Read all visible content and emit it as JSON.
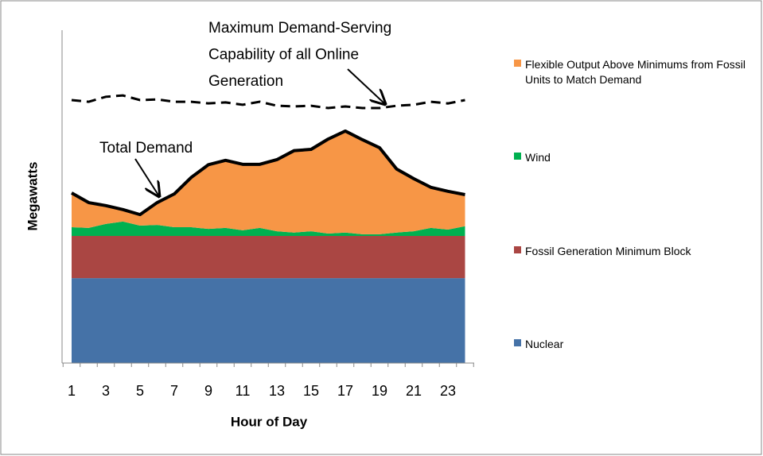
{
  "chart_data": {
    "type": "stacked_area",
    "x_label": "Hour of Day",
    "y_label": "Megawatts",
    "categories": [
      "1",
      null,
      "3",
      null,
      "5",
      null,
      "7",
      null,
      "9",
      null,
      "11",
      null,
      "13",
      null,
      "15",
      null,
      "17",
      null,
      "19",
      null,
      "21",
      null,
      "23",
      null
    ],
    "ylim": [
      0,
      100
    ],
    "series": [
      {
        "name": "Nuclear",
        "color": "#4572a7",
        "values": [
          25.5,
          25.5,
          25.5,
          25.5,
          25.5,
          25.5,
          25.5,
          25.5,
          25.5,
          25.5,
          25.5,
          25.5,
          25.5,
          25.5,
          25.5,
          25.5,
          25.5,
          25.5,
          25.5,
          25.5,
          25.5,
          25.5,
          25.5,
          25.5
        ]
      },
      {
        "name": "Fossil Generation Minimum Block",
        "color": "#aa4643",
        "values": [
          12.7,
          12.7,
          12.7,
          12.7,
          12.7,
          12.7,
          12.7,
          12.7,
          12.7,
          12.7,
          12.7,
          12.7,
          12.7,
          12.7,
          12.7,
          12.7,
          12.7,
          12.7,
          12.7,
          12.7,
          12.7,
          12.7,
          12.7,
          12.7
        ]
      },
      {
        "name": "Wind",
        "color": "#00b050",
        "values": [
          2.6,
          2.4,
          3.6,
          4.3,
          3.1,
          3.3,
          2.6,
          2.6,
          2.1,
          2.4,
          1.7,
          2.4,
          1.4,
          1.0,
          1.4,
          0.7,
          1.0,
          0.5,
          0.5,
          1.0,
          1.4,
          2.4,
          1.9,
          2.9
        ]
      },
      {
        "name": "Flexible Output Above Minimums from Fossil Units to Match Demand",
        "color": "#f79646",
        "values": [
          10.3,
          7.6,
          5.5,
          3.6,
          3.3,
          6.7,
          10.0,
          15.0,
          19.3,
          20.3,
          19.8,
          19.1,
          21.5,
          24.6,
          24.6,
          28.4,
          30.5,
          28.4,
          26.0,
          19.1,
          15.8,
          12.2,
          11.5,
          9.5
        ]
      }
    ],
    "top_line_color": "#000000",
    "overlay": {
      "color": "#000000",
      "style": "dashed",
      "values": [
        79.0,
        78.5,
        80.0,
        80.4,
        79.0,
        79.2,
        78.5,
        78.5,
        78.0,
        78.3,
        77.6,
        78.5,
        77.3,
        77.1,
        77.3,
        76.6,
        77.1,
        76.6,
        76.6,
        77.3,
        77.6,
        78.5,
        78.0,
        79.0
      ]
    },
    "annotations": [
      {
        "text": [
          "Maximum Demand-Serving",
          "Capability of all Online",
          "Generation"
        ]
      },
      {
        "text": [
          "Total Demand"
        ]
      }
    ],
    "legend": "right"
  }
}
